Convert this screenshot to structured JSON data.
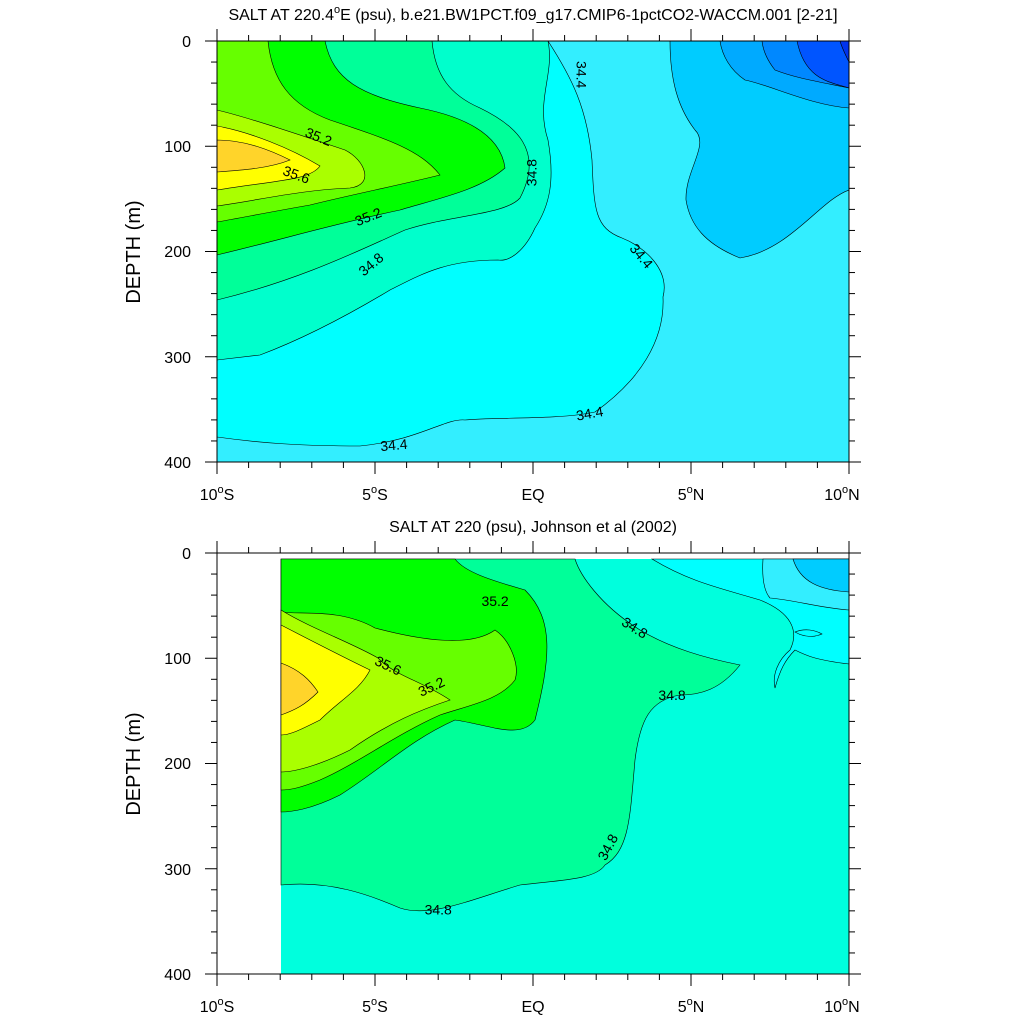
{
  "chart_data": [
    {
      "type": "contour",
      "title_pre": "SALT AT 220.4",
      "title_sup": "o",
      "title_post": "E (psu), b.e21.BW1PCT.f09_g17.CMIP6-1pctCO2-WACCM.001 [2-21]",
      "ylabel": "DEPTH (m)",
      "xlim": [
        -10,
        10
      ],
      "ylim": [
        0,
        400
      ],
      "x_ticks": [
        {
          "value": -10,
          "num": "10",
          "sup": "o",
          "suffix": "S"
        },
        {
          "value": -5,
          "num": "5",
          "sup": "o",
          "suffix": "S"
        },
        {
          "value": 0,
          "num": "EQ",
          "sup": "",
          "suffix": ""
        },
        {
          "value": 5,
          "num": "5",
          "sup": "o",
          "suffix": "N"
        },
        {
          "value": 10,
          "num": "10",
          "sup": "o",
          "suffix": "N"
        }
      ],
      "y_ticks": [
        {
          "value": 0,
          "label": "0"
        },
        {
          "value": 100,
          "label": "100"
        },
        {
          "value": 200,
          "label": "200"
        },
        {
          "value": 300,
          "label": "300"
        },
        {
          "value": 400,
          "label": "400"
        }
      ],
      "contour_labels": [
        {
          "text": "35.2",
          "lat": -6.8,
          "depth": 92,
          "angle": 22
        },
        {
          "text": "35.6",
          "lat": -7.5,
          "depth": 128,
          "angle": 20
        },
        {
          "text": "35.2",
          "lat": -5.2,
          "depth": 168,
          "angle": -22
        },
        {
          "text": "34.8",
          "lat": -5.1,
          "depth": 213,
          "angle": -40
        },
        {
          "text": "34.8",
          "lat": 0.0,
          "depth": 125,
          "angle": -90
        },
        {
          "text": "34.4",
          "lat": 1.5,
          "depth": 32,
          "angle": 90
        },
        {
          "text": "34.4",
          "lat": 3.4,
          "depth": 205,
          "angle": 50
        },
        {
          "text": "34.4",
          "lat": 1.8,
          "depth": 355,
          "angle": -10
        },
        {
          "text": "34.4",
          "lat": -4.4,
          "depth": 385,
          "angle": -5
        }
      ]
    },
    {
      "type": "contour",
      "title_pre": "SALT AT 220 (psu), Johnson et al (2002)",
      "title_sup": "",
      "title_post": "",
      "ylabel": "DEPTH (m)",
      "xlim": [
        -10,
        10
      ],
      "ylim": [
        0,
        400
      ],
      "x_ticks": [
        {
          "value": -10,
          "num": "10",
          "sup": "o",
          "suffix": "S"
        },
        {
          "value": -5,
          "num": "5",
          "sup": "o",
          "suffix": "S"
        },
        {
          "value": 0,
          "num": "EQ",
          "sup": "",
          "suffix": ""
        },
        {
          "value": 5,
          "num": "5",
          "sup": "o",
          "suffix": "N"
        },
        {
          "value": 10,
          "num": "10",
          "sup": "o",
          "suffix": "N"
        }
      ],
      "y_ticks": [
        {
          "value": 0,
          "label": "0"
        },
        {
          "value": 100,
          "label": "100"
        },
        {
          "value": 200,
          "label": "200"
        },
        {
          "value": 300,
          "label": "300"
        },
        {
          "value": 400,
          "label": "400"
        }
      ],
      "contour_labels": [
        {
          "text": "35.2",
          "lat": -1.2,
          "depth": 47,
          "angle": 0
        },
        {
          "text": "35.6",
          "lat": -4.6,
          "depth": 108,
          "angle": 25
        },
        {
          "text": "35.2",
          "lat": -3.2,
          "depth": 128,
          "angle": -25
        },
        {
          "text": "34.8",
          "lat": 3.2,
          "depth": 72,
          "angle": 32
        },
        {
          "text": "34.8",
          "lat": 4.4,
          "depth": 136,
          "angle": 0
        },
        {
          "text": "34.8",
          "lat": 2.4,
          "depth": 280,
          "angle": -62
        },
        {
          "text": "34.8",
          "lat": -3.0,
          "depth": 340,
          "angle": 0
        }
      ]
    }
  ]
}
